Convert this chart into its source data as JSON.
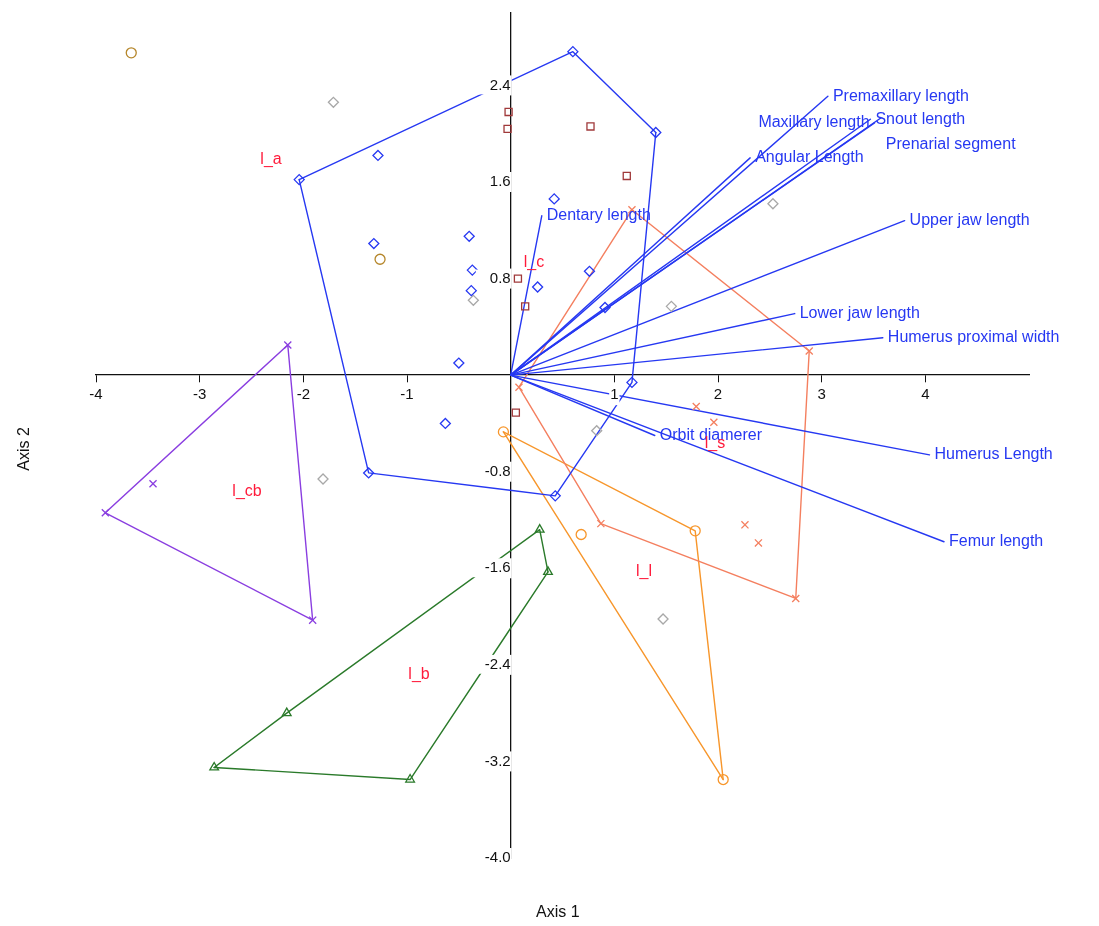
{
  "chart_data": {
    "type": "scatter",
    "xlabel": "Axis 1",
    "ylabel": "Axis 2",
    "xlim": [
      -4,
      5
    ],
    "ylim": [
      -4,
      3
    ],
    "xticks": [
      -4,
      -3,
      -2,
      -1,
      1,
      2,
      3,
      4
    ],
    "yticks": [
      {
        "value": -4,
        "label": "-4.0"
      },
      -3.2,
      -2.4,
      -1.6,
      -0.8,
      0.8,
      1.6,
      2.4
    ],
    "grid": false,
    "legend": false,
    "annotations": [
      "l_a",
      "l_c",
      "l_s",
      "l_l",
      "l_b",
      "l_cb"
    ],
    "series": [
      {
        "name": "Premaxillary length",
        "type": "line",
        "marker": "none",
        "color": "#2638f2",
        "x": [
          0,
          3.06
        ],
        "values": [
          0,
          2.31
        ]
      },
      {
        "name": "Snout length",
        "type": "line",
        "marker": "none",
        "color": "#2638f2",
        "x": [
          0,
          3.47
        ],
        "values": [
          0,
          2.12
        ]
      },
      {
        "name": "Prenarial segment",
        "type": "line",
        "marker": "none",
        "color": "#2638f2",
        "x": [
          0,
          3.57
        ],
        "values": [
          0,
          2.13
        ]
      },
      {
        "name": "Maxillary length",
        "type": "line",
        "marker": "none",
        "color": "#2638f2",
        "x": [
          0,
          3.51
        ],
        "values": [
          0,
          2.09
        ]
      },
      {
        "name": "Angular Length",
        "type": "line",
        "marker": "none",
        "color": "#2638f2",
        "x": [
          0,
          2.31
        ],
        "values": [
          0,
          1.8
        ]
      },
      {
        "name": "Dentary length",
        "type": "line",
        "marker": "none",
        "color": "#2638f2",
        "x": [
          0,
          0.3
        ],
        "values": [
          0,
          1.32
        ]
      },
      {
        "name": "Upper jaw length",
        "type": "line",
        "marker": "none",
        "color": "#2638f2",
        "x": [
          0,
          3.8
        ],
        "values": [
          0,
          1.28
        ]
      },
      {
        "name": "Lower jaw length",
        "type": "line",
        "marker": "none",
        "color": "#2638f2",
        "x": [
          0,
          2.74
        ],
        "values": [
          0,
          0.51
        ]
      },
      {
        "name": "Humerus proximal width",
        "type": "line",
        "marker": "none",
        "color": "#2638f2",
        "x": [
          0,
          3.59
        ],
        "values": [
          0,
          0.31
        ]
      },
      {
        "name": "Humerus Length",
        "type": "line",
        "marker": "none",
        "color": "#2638f2",
        "x": [
          0,
          4.04
        ],
        "values": [
          0,
          -0.66
        ]
      },
      {
        "name": "Femur length",
        "type": "line",
        "marker": "none",
        "color": "#2638f2",
        "x": [
          0,
          4.18
        ],
        "values": [
          0,
          -1.38
        ]
      },
      {
        "name": "Orbit diamerer",
        "type": "line",
        "marker": "none",
        "color": "#2638f2",
        "x": [
          0,
          1.39
        ],
        "values": [
          0,
          -0.5
        ]
      },
      {
        "type": "line",
        "marker": "none",
        "color": "#2638f2",
        "x": [
          -2.04,
          0.6,
          1.4
        ],
        "values": [
          1.62,
          2.68,
          2.01
        ]
      },
      {
        "type": "line",
        "marker": "none",
        "color": "#2638f2",
        "x": [
          -2.04,
          -1.37,
          0.43,
          1.17,
          1.4
        ],
        "values": [
          1.62,
          -0.81,
          -1.0,
          -0.06,
          2.01
        ]
      },
      {
        "type": "line",
        "marker": "none",
        "color": "#f47f5f",
        "x": [
          0.08,
          1.17,
          2.88
        ],
        "values": [
          -0.1,
          1.37,
          0.2
        ]
      },
      {
        "type": "line",
        "marker": "none",
        "color": "#f47f5f",
        "x": [
          0.08,
          0.87,
          2.75,
          2.88
        ],
        "values": [
          -0.1,
          -1.23,
          -1.85,
          0.2
        ]
      },
      {
        "type": "line",
        "marker": "none",
        "color": "#f7962b",
        "x": [
          -0.07,
          1.78,
          2.05
        ],
        "values": [
          -0.47,
          -1.29,
          -3.35
        ]
      },
      {
        "type": "line",
        "marker": "none",
        "color": "#f7962b",
        "x": [
          -0.07,
          2.05
        ],
        "values": [
          -0.47,
          -3.35
        ]
      },
      {
        "type": "line",
        "marker": "none",
        "color": "#2a7a2a",
        "x": [
          -2.86,
          -2.16,
          0.28,
          0.36
        ],
        "values": [
          -3.25,
          -2.8,
          -1.28,
          -1.63
        ]
      },
      {
        "type": "line",
        "marker": "none",
        "color": "#2a7a2a",
        "x": [
          -2.86,
          -0.97,
          0.36
        ],
        "values": [
          -3.25,
          -3.35,
          -1.63
        ]
      },
      {
        "type": "line",
        "marker": "none",
        "color": "#8a3ee0",
        "x": [
          -3.91,
          -2.15,
          -1.91
        ],
        "values": [
          -1.14,
          0.25,
          -2.03
        ]
      },
      {
        "type": "line",
        "marker": "none",
        "color": "#8a3ee0",
        "x": [
          -3.91,
          -1.91
        ],
        "values": [
          -1.14,
          -2.03
        ]
      },
      {
        "type": "scatter",
        "marker": "diamond",
        "color": "#2638f2",
        "x": [
          -2.04,
          0.6,
          1.4,
          1.17,
          0.43,
          -1.37,
          -1.28,
          -1.32,
          -0.4,
          -0.37,
          -0.38,
          -0.5,
          -0.63,
          0.26,
          0.42,
          0.76,
          0.91
        ],
        "values": [
          1.62,
          2.68,
          2.01,
          -0.06,
          -1.0,
          -0.81,
          1.82,
          1.09,
          1.15,
          0.87,
          0.7,
          0.1,
          -0.4,
          0.73,
          1.46,
          0.86,
          0.56
        ]
      },
      {
        "type": "scatter",
        "marker": "diamond",
        "color": "#a8a8a8",
        "x": [
          -1.71,
          -0.36,
          -1.81,
          0.83,
          1.47,
          2.53,
          1.55
        ],
        "values": [
          2.26,
          0.62,
          -0.86,
          -0.46,
          -2.02,
          1.42,
          0.57
        ]
      },
      {
        "type": "scatter",
        "marker": "circle",
        "color": "#b5862a",
        "x": [
          -3.66,
          -1.26
        ],
        "values": [
          2.67,
          0.96
        ]
      },
      {
        "type": "scatter",
        "marker": "square",
        "color": "#a0393a",
        "x": [
          -0.02,
          -0.03,
          0.77,
          1.12,
          0.07,
          0.14,
          0.05
        ],
        "values": [
          2.18,
          2.04,
          2.06,
          1.65,
          0.8,
          0.57,
          -0.31
        ]
      },
      {
        "type": "scatter",
        "marker": "cross",
        "color": "#f47f5f",
        "x": [
          0.08,
          1.17,
          2.88,
          2.75,
          0.87,
          1.79,
          1.96,
          2.26,
          2.39
        ],
        "values": [
          -0.1,
          1.37,
          0.2,
          -1.85,
          -1.23,
          -0.26,
          -0.39,
          -1.24,
          -1.39
        ]
      },
      {
        "type": "scatter",
        "marker": "circle",
        "color": "#f7962b",
        "x": [
          -0.07,
          1.78,
          2.05,
          0.68
        ],
        "values": [
          -0.47,
          -1.29,
          -3.35,
          -1.32
        ]
      },
      {
        "type": "scatter",
        "marker": "triangle",
        "color": "#2a7a2a",
        "x": [
          0.28,
          0.36,
          -0.97,
          -2.86,
          -2.16
        ],
        "values": [
          -1.28,
          -1.63,
          -3.35,
          -3.25,
          -2.8
        ]
      },
      {
        "type": "scatter",
        "marker": "cross",
        "color": "#8a3ee0",
        "x": [
          -2.15,
          -3.91,
          -1.91,
          -3.45
        ],
        "values": [
          0.25,
          -1.14,
          -2.03,
          -0.9
        ]
      }
    ]
  }
}
